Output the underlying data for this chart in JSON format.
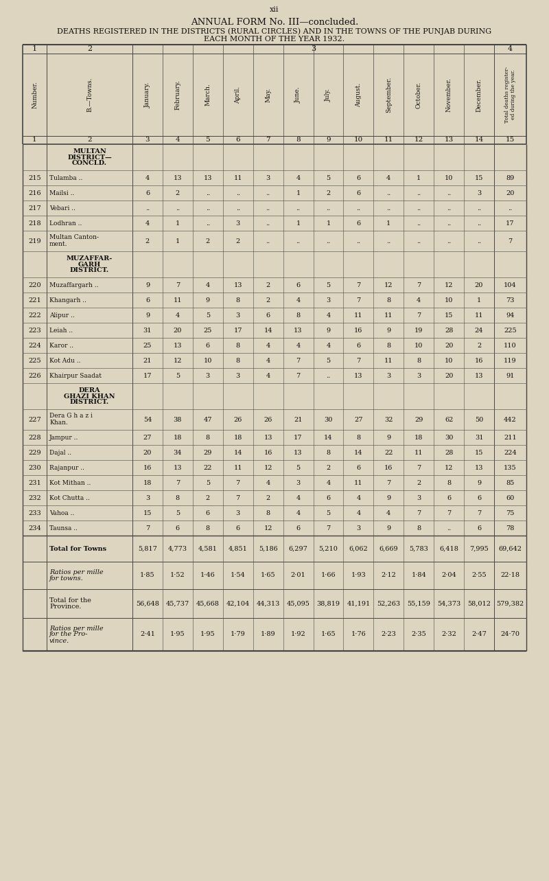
{
  "page_num": "xii",
  "title1": "ANNUAL FORM No. III—concluded.",
  "title2": "DEATHS REGISTERED IN THE DISTRICTS (RURAL CIRCLES) AND IN THE TOWNS OF THE PUNJAB DURING",
  "title3": "EACH MONTH OF THE YEAR 1932.",
  "section_headers": [
    {
      "label": "MULTAN\nDISTRICT—\nCONCLD.",
      "before_row": 0
    },
    {
      "label": "MUZAFFAR-\nGARH\nDISTRICT.",
      "before_row": 5
    },
    {
      "label": "DERA\nGHAZI KHAN\nDISTRICT.",
      "before_row": 12
    }
  ],
  "rows": [
    {
      "num": "215",
      "name": "Tulamba",
      "dots": true,
      "jan": "4",
      "feb": "13",
      "mar": "13",
      "apr": "11",
      "may": "3",
      "jun": "4",
      "jul": "5",
      "aug": "6",
      "sep": "4",
      "oct": "1",
      "nov": "10",
      "dec": "15",
      "total": "89"
    },
    {
      "num": "216",
      "name": "Mailsi",
      "dots": true,
      "jan": "6",
      "feb": "2",
      "mar": "..",
      "apr": "..",
      "may": "..",
      "jun": "1",
      "jul": "2",
      "aug": "6",
      "sep": "..",
      "oct": "..",
      "nov": "..",
      "dec": "3",
      "total": "20"
    },
    {
      "num": "217",
      "name": "Vebari",
      "dots": true,
      "jan": "..",
      "feb": "..",
      "mar": "..",
      "apr": "..",
      "may": "..",
      "jun": "..",
      "jul": "..",
      "aug": "..",
      "sep": "..",
      "oct": "..",
      "nov": "..",
      "dec": "..",
      "total": ".."
    },
    {
      "num": "218",
      "name": "Lodhran",
      "dots": true,
      "jan": "4",
      "feb": "1",
      "mar": "..",
      "apr": "3",
      "may": "..",
      "jun": "1",
      "jul": "1",
      "aug": "6",
      "sep": "1",
      "oct": "..",
      "nov": "..",
      "dec": "..",
      "total": "17"
    },
    {
      "num": "219",
      "name": "Multan Canton-\nment.",
      "dots": false,
      "jan": "2",
      "feb": "1",
      "mar": "2",
      "apr": "2",
      "may": "..",
      "jun": "..",
      "jul": "..",
      "aug": "..",
      "sep": "..",
      "oct": "..",
      "nov": "..",
      "dec": "..",
      "total": "7"
    },
    {
      "num": "220",
      "name": "Muzaffargarh ..",
      "dots": false,
      "jan": "9",
      "feb": "7",
      "mar": "4",
      "apr": "13",
      "may": "2",
      "jun": "6",
      "jul": "5",
      "aug": "7",
      "sep": "12",
      "oct": "7",
      "nov": "12",
      "dec": "20",
      "total": "104"
    },
    {
      "num": "221",
      "name": "Khangarh",
      "dots": true,
      "jan": "6",
      "feb": "11",
      "mar": "9",
      "apr": "8",
      "may": "2",
      "jun": "4",
      "jul": "3",
      "aug": "7",
      "sep": "8",
      "oct": "4",
      "nov": "10",
      "dec": "1",
      "total": "73"
    },
    {
      "num": "222",
      "name": "Alipur",
      "dots": true,
      "jan": "9",
      "feb": "4",
      "mar": "5",
      "apr": "3",
      "may": "6",
      "jun": "8",
      "jul": "4",
      "aug": "11",
      "sep": "11",
      "oct": "7",
      "nov": "15",
      "dec": "11",
      "total": "94"
    },
    {
      "num": "223",
      "name": "Leiah",
      "dots": true,
      "jan": "31",
      "feb": "20",
      "mar": "25",
      "apr": "17",
      "may": "14",
      "jun": "13",
      "jul": "9",
      "aug": "16",
      "sep": "9",
      "oct": "19",
      "nov": "28",
      "dec": "24",
      "total": "225"
    },
    {
      "num": "224",
      "name": "Karor",
      "dots": true,
      "jan": "25",
      "feb": "13",
      "mar": "6",
      "apr": "8",
      "may": "4",
      "jun": "4",
      "jul": "4",
      "aug": "6",
      "sep": "8",
      "oct": "10",
      "nov": "20",
      "dec": "2",
      "total": "110"
    },
    {
      "num": "225",
      "name": "Kot Adu",
      "dots": true,
      "jan": "21",
      "feb": "12",
      "mar": "10",
      "apr": "8",
      "may": "4",
      "jun": "7",
      "jul": "5",
      "aug": "7",
      "sep": "11",
      "oct": "8",
      "nov": "10",
      "dec": "16",
      "total": "119"
    },
    {
      "num": "226",
      "name": "Khairpur Saadat",
      "dots": false,
      "jan": "17",
      "feb": "5",
      "mar": "3",
      "apr": "3",
      "may": "4",
      "jun": "7",
      "jul": "..",
      "aug": "13",
      "sep": "3",
      "oct": "3",
      "nov": "20",
      "dec": "13",
      "total": "91"
    },
    {
      "num": "227",
      "name": "Dera G h a z i\nKhan.",
      "dots": false,
      "jan": "54",
      "feb": "38",
      "mar": "47",
      "apr": "26",
      "may": "26",
      "jun": "21",
      "jul": "30",
      "aug": "27",
      "sep": "32",
      "oct": "29",
      "nov": "62",
      "dec": "50",
      "total": "442"
    },
    {
      "num": "228",
      "name": "Jampur",
      "dots": true,
      "jan": "27",
      "feb": "18",
      "mar": "8",
      "apr": "18",
      "may": "13",
      "jun": "17",
      "jul": "14",
      "aug": "8",
      "sep": "9",
      "oct": "18",
      "nov": "30",
      "dec": "31",
      "total": "211"
    },
    {
      "num": "229",
      "name": "Dajal",
      "dots": true,
      "jan": "20",
      "feb": "34",
      "mar": "29",
      "apr": "14",
      "may": "16",
      "jun": "13",
      "jul": "8",
      "aug": "14",
      "sep": "22",
      "oct": "11",
      "nov": "28",
      "dec": "15",
      "total": "224"
    },
    {
      "num": "230",
      "name": "Rajanpur",
      "dots": true,
      "jan": "16",
      "feb": "13",
      "mar": "22",
      "apr": "11",
      "may": "12",
      "jun": "5",
      "jul": "2",
      "aug": "6",
      "sep": "16",
      "oct": "7",
      "nov": "12",
      "dec": "13",
      "total": "135"
    },
    {
      "num": "231",
      "name": "Kot Mithan ..",
      "dots": false,
      "jan": "18",
      "feb": "7",
      "mar": "5",
      "apr": "7",
      "may": "4",
      "jun": "3",
      "jul": "4",
      "aug": "11",
      "sep": "7",
      "oct": "2",
      "nov": "8",
      "dec": "9",
      "total": "85"
    },
    {
      "num": "232",
      "name": "Kot Chutta ..",
      "dots": false,
      "jan": "3",
      "feb": "8",
      "mar": "2",
      "apr": "7",
      "may": "2",
      "jun": "4",
      "jul": "6",
      "aug": "4",
      "sep": "9",
      "oct": "3",
      "nov": "6",
      "dec": "6",
      "total": "60"
    },
    {
      "num": "233",
      "name": "Vahoa",
      "dots": true,
      "jan": "15",
      "feb": "5",
      "mar": "6",
      "apr": "3",
      "may": "8",
      "jun": "4",
      "jul": "5",
      "aug": "4",
      "sep": "4",
      "oct": "7",
      "nov": "7",
      "dec": "7",
      "total": "75"
    },
    {
      "num": "234",
      "name": "Taunsa",
      "dots": true,
      "jan": "7",
      "feb": "6",
      "mar": "8",
      "apr": "6",
      "may": "12",
      "jun": "6",
      "jul": "7",
      "aug": "3",
      "sep": "9",
      "oct": "8",
      "nov": "..",
      "dec": "6",
      "total": "78"
    }
  ],
  "footer_rows": [
    {
      "label": "Total for Towns",
      "bold": true,
      "italic": false,
      "jan": "5,817",
      "feb": "4,773",
      "mar": "4,581",
      "apr": "4,851",
      "may": "5,186",
      "jun": "6,297",
      "jul": "5,210",
      "aug": "6,062",
      "sep": "6,669",
      "oct": "5,783",
      "nov": "6,418",
      "dec": "7,995",
      "total": "69,642"
    },
    {
      "label": "Ratios per mille\nfor towns.",
      "bold": false,
      "italic": true,
      "jan": "1·85",
      "feb": "1·52",
      "mar": "1·46",
      "apr": "1·54",
      "may": "1·65",
      "jun": "2·01",
      "jul": "1·66",
      "aug": "1·93",
      "sep": "2·12",
      "oct": "1·84",
      "nov": "2·04",
      "dec": "2·55",
      "total": "22·18"
    },
    {
      "label": "Total for the\nProvince.",
      "bold": false,
      "italic": false,
      "jan": "56,648",
      "feb": "45,737",
      "mar": "45,668",
      "apr": "42,104",
      "may": "44,313",
      "jun": "45,095",
      "jul": "38,819",
      "aug": "41,191",
      "sep": "52,263",
      "oct": "55,159",
      "nov": "54,373",
      "dec": "58,012",
      "total": "579,382"
    },
    {
      "label": "Ratios per mille\nfor the Pro-\nvince.",
      "bold": false,
      "italic": true,
      "jan": "2·41",
      "feb": "1·95",
      "mar": "1·95",
      "apr": "1·79",
      "may": "1·89",
      "jun": "1·92",
      "jul": "1·65",
      "aug": "1·76",
      "sep": "2·23",
      "oct": "2·35",
      "nov": "2·32",
      "dec": "2·47",
      "total": "24·70"
    }
  ],
  "bg_color": "#ddd5c0",
  "text_color": "#111111",
  "line_color": "#444444"
}
